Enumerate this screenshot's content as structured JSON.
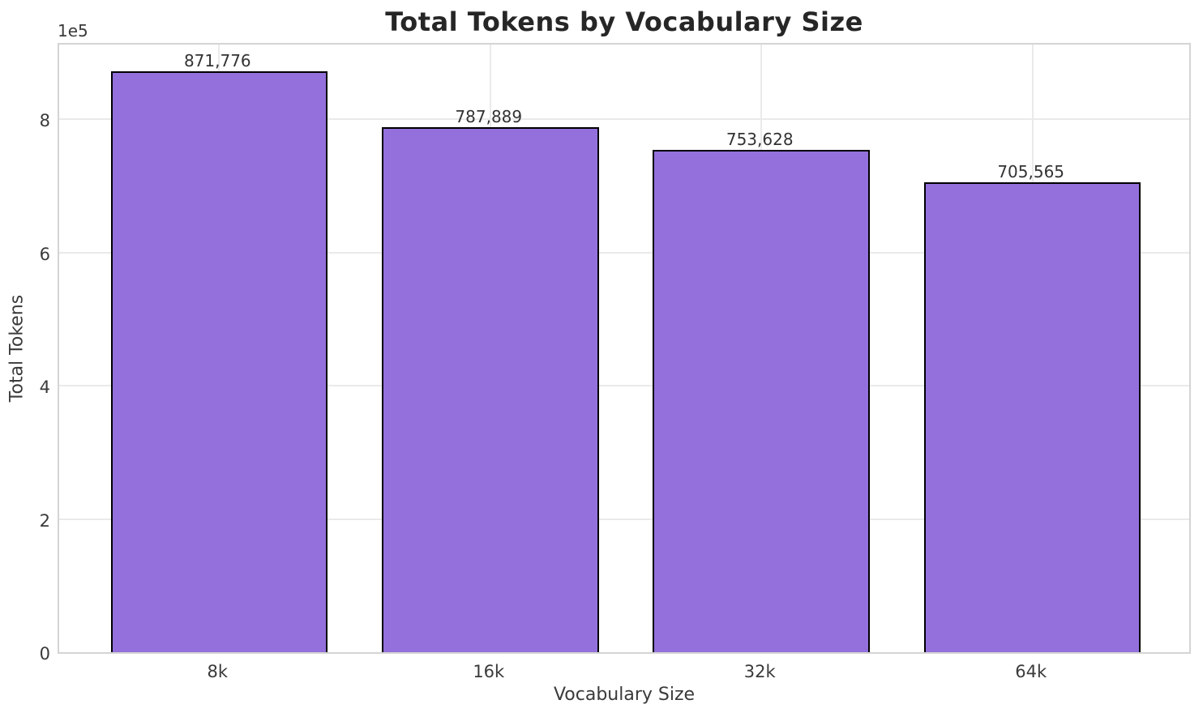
{
  "chart_data": {
    "type": "bar",
    "title": "Total Tokens by Vocabulary Size",
    "xlabel": "Vocabulary Size",
    "ylabel": "Total Tokens",
    "categories": [
      "8k",
      "16k",
      "32k",
      "64k"
    ],
    "values": [
      871776,
      787889,
      753628,
      705565
    ],
    "value_labels": [
      "871,776",
      "787,889",
      "753,628",
      "705,565"
    ],
    "y_offset_text": "1e5",
    "ytick_labels": [
      "0",
      "2",
      "4",
      "6",
      "8"
    ],
    "ytick_values": [
      0,
      200000,
      400000,
      600000,
      800000
    ],
    "ylim": [
      0,
      917000
    ],
    "grid": "on",
    "legend": "none",
    "colors": {
      "bar_fill": "#9370DB",
      "bar_edge": "#000000",
      "grid_line": "#eaeaea",
      "spine": "#d4d4d4",
      "title_text": "#262626",
      "tick_text": "#3a3a3a",
      "value_label_text": "#333333",
      "background": "#ffffff"
    }
  }
}
